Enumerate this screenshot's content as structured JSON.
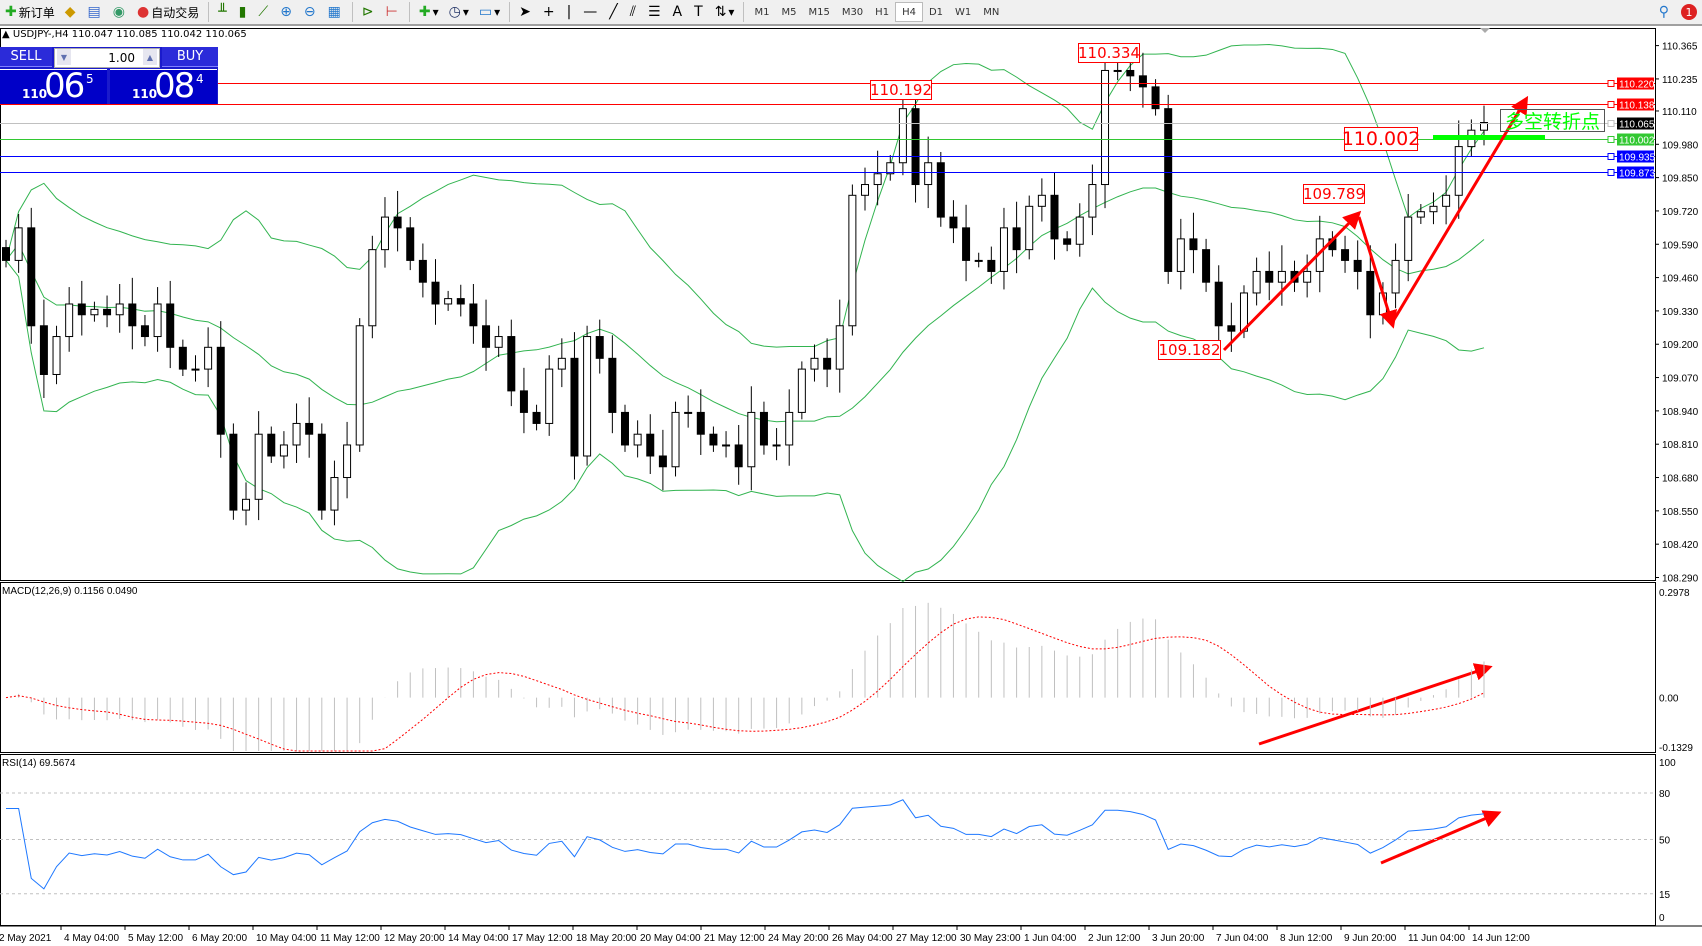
{
  "toolbar": {
    "new_order": "新订单",
    "auto_trading": "自动交易",
    "timeframes": [
      "M1",
      "M5",
      "M15",
      "M30",
      "H1",
      "H4",
      "D1",
      "W1",
      "MN"
    ],
    "active_timeframe": "H4",
    "notification_count": "1"
  },
  "header": {
    "symbol_info": "USDJPY-,H4  110.047 110.085 110.042 110.065"
  },
  "trade_panel": {
    "sell_label": "SELL",
    "buy_label": "BUY",
    "lot": "1.00",
    "sell_price": {
      "big": "110",
      "main": "06",
      "sup": "5"
    },
    "buy_price": {
      "big": "110",
      "main": "08",
      "sup": "4"
    }
  },
  "price_axis": {
    "ticks": [
      "110.365",
      "110.235",
      "110.110",
      "109.980",
      "109.850",
      "109.720",
      "109.590",
      "109.460",
      "109.330",
      "109.200",
      "109.070",
      "108.940",
      "108.810",
      "108.680",
      "108.550",
      "108.420",
      "108.290"
    ],
    "min": 108.29,
    "max": 110.365
  },
  "levels": [
    {
      "price": 110.22,
      "label": "110.220",
      "color": "#ff0000"
    },
    {
      "price": 110.138,
      "label": "110.138",
      "color": "#ff0000"
    },
    {
      "price": 110.065,
      "label": "110.065",
      "color": "#000000",
      "line": "#c0c0c0"
    },
    {
      "price": 110.002,
      "label": "110.002",
      "color": "#32c832"
    },
    {
      "price": 109.935,
      "label": "109.935",
      "color": "#0000ff"
    },
    {
      "price": 109.873,
      "label": "109.873",
      "color": "#0000ff"
    }
  ],
  "annotations": {
    "high1": "110.334",
    "high2": "110.192",
    "pivot": "110.002",
    "mid": "109.789",
    "low": "109.182",
    "turn_point": "多空转折点"
  },
  "candles_close": [
    109.527,
    109.654,
    109.272,
    109.082,
    109.23,
    109.357,
    109.315,
    109.336,
    109.315,
    109.357,
    109.272,
    109.23,
    109.357,
    109.188,
    109.103,
    109.103,
    109.188,
    108.849,
    108.553,
    108.595,
    108.849,
    108.764,
    108.807,
    108.891,
    108.849,
    108.553,
    108.68,
    108.807,
    109.272,
    109.569,
    109.696,
    109.654,
    109.527,
    109.442,
    109.357,
    109.378,
    109.357,
    109.272,
    109.188,
    109.23,
    109.018,
    108.934,
    108.891,
    109.103,
    109.145,
    108.764,
    109.23,
    109.145,
    108.934,
    108.807,
    108.849,
    108.764,
    108.722,
    108.934,
    108.934,
    108.849,
    108.807,
    108.807,
    108.722,
    108.934,
    108.807,
    108.807,
    108.934,
    109.103,
    109.145,
    109.103,
    109.272,
    109.781,
    109.823,
    109.865,
    109.908,
    110.119,
    109.823,
    109.908,
    109.696,
    109.654,
    109.527,
    109.527,
    109.484,
    109.654,
    109.569,
    109.738,
    109.781,
    109.611,
    109.59,
    109.696,
    109.823,
    110.268,
    110.268,
    110.247,
    110.204,
    110.119,
    109.484,
    109.611,
    109.569,
    109.442,
    109.272,
    109.251,
    109.4,
    109.484,
    109.442,
    109.484,
    109.442,
    109.484,
    109.611,
    109.569,
    109.527,
    109.484,
    109.315,
    109.4,
    109.527,
    109.696,
    109.717,
    109.738,
    109.781,
    109.971,
    110.035,
    110.065
  ],
  "macd": {
    "label": "MACD(12,26,9) 0.1156 0.0490",
    "ticks": [
      "0.2978",
      "0.00",
      "-0.1329"
    ],
    "max": 0.2978,
    "min": -0.1329
  },
  "rsi": {
    "label": "RSI(14) 69.5674",
    "ticks": [
      "100",
      "80",
      "50",
      "15",
      "0"
    ]
  },
  "time_axis": [
    "2 May 2021",
    "4 May 04:00",
    "5 May 12:00",
    "6 May 20:00",
    "10 May 04:00",
    "11 May 12:00",
    "12 May 20:00",
    "14 May 04:00",
    "17 May 12:00",
    "18 May 20:00",
    "20 May 04:00",
    "21 May 12:00",
    "24 May 20:00",
    "26 May 04:00",
    "27 May 12:00",
    "30 May 23:00",
    "1 Jun 04:00",
    "2 Jun 12:00",
    "3 Jun 20:00",
    "7 Jun 04:00",
    "8 Jun 12:00",
    "9 Jun 20:00",
    "11 Jun 04:00",
    "14 Jun 12:00"
  ],
  "colors": {
    "bands": "#32b450",
    "macd_signal": "#ff0000",
    "rsi_line": "#1e78ff",
    "arrow": "#ff0000",
    "turn_bar": "#00ff00"
  }
}
